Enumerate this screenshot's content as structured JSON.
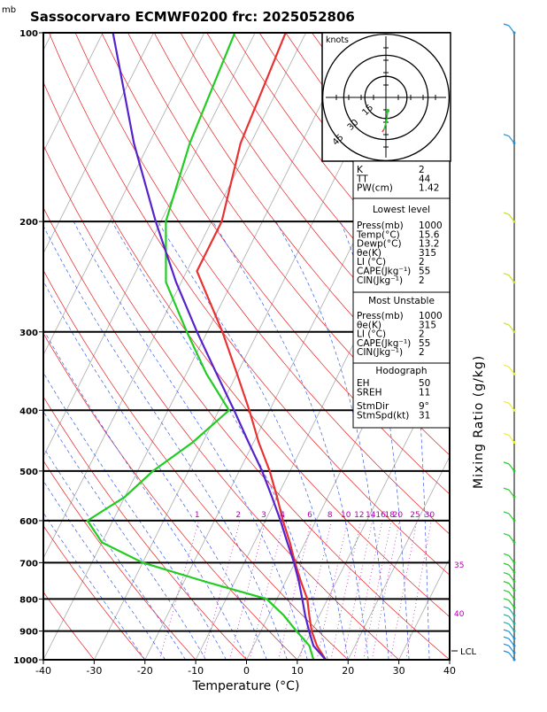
{
  "header": {
    "unit": "mb",
    "title": "Sassocorvaro ECMWF0200 frc: 2025052806"
  },
  "chart_data": {
    "type": "line",
    "subtype": "skew-T log-P diagram",
    "xlabel": "Temperature (°C)",
    "right_label": "Mixing Ratio  (g/kg)",
    "x_ticks": [
      -40,
      -30,
      -20,
      -10,
      0,
      10,
      20,
      30,
      40
    ],
    "y_ticks": [
      100,
      200,
      300,
      400,
      500,
      600,
      700,
      800,
      900,
      1000
    ],
    "y_scale": "log",
    "xlim": [
      -40,
      40
    ],
    "ylim": [
      1000,
      100
    ],
    "mixing_ratio_labels": [
      "1",
      "2",
      "3",
      "4",
      "6",
      "8",
      "10",
      "12",
      "14",
      "16",
      "18",
      "20",
      "25",
      "30"
    ],
    "mixing_ratio_values": [
      1,
      2,
      3,
      4,
      6,
      8,
      10,
      12,
      14,
      16,
      18,
      20,
      25,
      30
    ],
    "theta_e_labels": [
      "35",
      "40"
    ],
    "lcl_label": "LCL",
    "series": [
      {
        "name": "Temperature",
        "color": "#e83232",
        "points": [
          [
            1000,
            15.6
          ],
          [
            950,
            12.5
          ],
          [
            900,
            10
          ],
          [
            850,
            8
          ],
          [
            800,
            6
          ],
          [
            750,
            3
          ],
          [
            700,
            0
          ],
          [
            650,
            -3
          ],
          [
            600,
            -6.5
          ],
          [
            550,
            -10
          ],
          [
            500,
            -14
          ],
          [
            450,
            -19
          ],
          [
            400,
            -24
          ],
          [
            350,
            -30
          ],
          [
            300,
            -37
          ],
          [
            250,
            -46
          ],
          [
            240,
            -48
          ],
          [
            200,
            -48
          ],
          [
            150,
            -52
          ],
          [
            100,
            -54
          ]
        ]
      },
      {
        "name": "Dewpoint",
        "color": "#22cc22",
        "points": [
          [
            1000,
            13.2
          ],
          [
            950,
            11
          ],
          [
            900,
            7
          ],
          [
            850,
            3
          ],
          [
            800,
            -2
          ],
          [
            750,
            -16
          ],
          [
            700,
            -30
          ],
          [
            650,
            -40
          ],
          [
            600,
            -45
          ],
          [
            550,
            -40
          ],
          [
            500,
            -37
          ],
          [
            450,
            -32
          ],
          [
            400,
            -28
          ],
          [
            350,
            -36
          ],
          [
            300,
            -44
          ],
          [
            250,
            -53
          ],
          [
            200,
            -59
          ],
          [
            150,
            -62
          ],
          [
            100,
            -64
          ]
        ]
      },
      {
        "name": "Parcel",
        "color": "#5522cc",
        "points": [
          [
            1000,
            15.6
          ],
          [
            950,
            11.8
          ],
          [
            900,
            9.5
          ],
          [
            850,
            7.2
          ],
          [
            800,
            5
          ],
          [
            750,
            2.6
          ],
          [
            700,
            -0.2
          ],
          [
            650,
            -3.5
          ],
          [
            600,
            -7
          ],
          [
            550,
            -11
          ],
          [
            500,
            -15.5
          ],
          [
            450,
            -21
          ],
          [
            400,
            -27
          ],
          [
            350,
            -34
          ],
          [
            300,
            -42
          ],
          [
            250,
            -51
          ],
          [
            200,
            -61
          ],
          [
            150,
            -73
          ],
          [
            100,
            -88
          ]
        ]
      }
    ]
  },
  "hodograph": {
    "unit_label": "knots",
    "ring_labels": [
      "15",
      "30",
      "45"
    ],
    "wind_points_kt": [
      [
        3,
        10
      ],
      [
        1,
        18
      ],
      [
        -3,
        24
      ],
      [
        -6,
        26
      ]
    ]
  },
  "indices": {
    "rows": [
      {
        "label": "K",
        "value": "2"
      },
      {
        "label": "TT",
        "value": "44"
      },
      {
        "label": "PW(cm)",
        "value": "1.42"
      }
    ]
  },
  "lowest_level": {
    "header": "Lowest level",
    "rows": [
      {
        "label": "Press(mb)",
        "value": "1000"
      },
      {
        "label": "Temp(°C)",
        "value": "15.6"
      },
      {
        "label": "Dewp(°C)",
        "value": "13.2"
      },
      {
        "label": "θe(K)",
        "value": "315"
      },
      {
        "label": "LI (°C)",
        "value": "2"
      },
      {
        "label": "CAPE(Jkg⁻¹)",
        "value": "55"
      },
      {
        "label": "CIN(Jkg⁻¹)",
        "value": "2"
      }
    ]
  },
  "most_unstable": {
    "header": "Most Unstable",
    "rows": [
      {
        "label": "Press(mb)",
        "value": "1000"
      },
      {
        "label": "θe(K)",
        "value": "315"
      },
      {
        "label": "LI (°C)",
        "value": "2"
      },
      {
        "label": "CAPE(Jkg⁻¹)",
        "value": "55"
      },
      {
        "label": "CIN(Jkg⁻¹)",
        "value": "2"
      }
    ]
  },
  "hodo_params": {
    "header": "Hodograph",
    "rows": [
      {
        "label": "EH",
        "value": "50"
      },
      {
        "label": "SREH",
        "value": "11"
      },
      {
        "label": "StmDir",
        "value": "9°"
      },
      {
        "label": "StmSpd(kt)",
        "value": "31"
      }
    ]
  },
  "wind_profile": {
    "levels_mb": [
      1000,
      975,
      950,
      925,
      900,
      875,
      850,
      825,
      800,
      775,
      750,
      725,
      700,
      650,
      600,
      550,
      500,
      450,
      400,
      350,
      300,
      250,
      200,
      150,
      100
    ],
    "colors": [
      "#1a8fe0",
      "#1ab0a0",
      "#22cc22",
      "#ccdd22",
      "#eeee22"
    ]
  }
}
